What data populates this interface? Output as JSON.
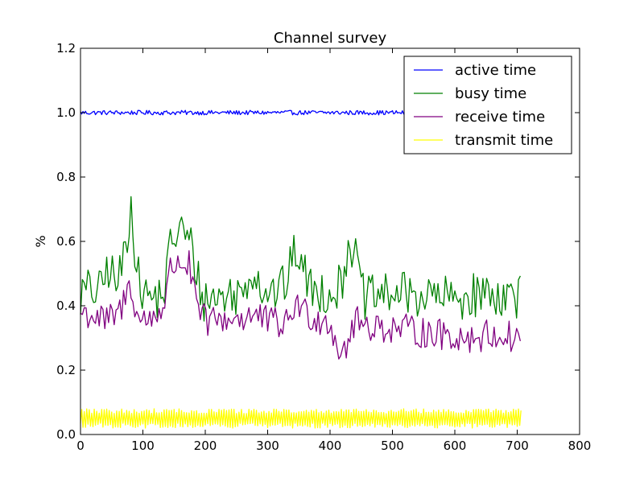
{
  "chart_data": {
    "type": "line",
    "title": "Channel survey",
    "xlabel": "",
    "ylabel": "%",
    "xlim": [
      0,
      800
    ],
    "ylim": [
      0,
      1.2
    ],
    "x_ticks": [
      0,
      100,
      200,
      300,
      400,
      500,
      600,
      700,
      800
    ],
    "y_ticks": [
      0.0,
      0.2,
      0.4,
      0.6,
      0.8,
      1.0,
      1.2
    ],
    "grid": false,
    "legend_position": "top-right",
    "series": [
      {
        "name": "active time",
        "color": "#0000ff",
        "x_range": [
          0,
          706
        ],
        "description": "flat noisy line",
        "anchors": [
          [
            0,
            1.0
          ]
        ],
        "noise": 0.007,
        "noise_step": 2
      },
      {
        "name": "busy time",
        "color": "#008000",
        "x_range": [
          0,
          706
        ],
        "anchors": [
          [
            0,
            0.43
          ],
          [
            10,
            0.45
          ],
          [
            30,
            0.44
          ],
          [
            45,
            0.52
          ],
          [
            60,
            0.46
          ],
          [
            75,
            0.62
          ],
          [
            82,
            0.74
          ],
          [
            90,
            0.5
          ],
          [
            100,
            0.44
          ],
          [
            120,
            0.42
          ],
          [
            135,
            0.45
          ],
          [
            145,
            0.6
          ],
          [
            160,
            0.64
          ],
          [
            175,
            0.6
          ],
          [
            185,
            0.52
          ],
          [
            195,
            0.42
          ],
          [
            230,
            0.43
          ],
          [
            260,
            0.44
          ],
          [
            275,
            0.52
          ],
          [
            290,
            0.46
          ],
          [
            310,
            0.44
          ],
          [
            330,
            0.47
          ],
          [
            345,
            0.58
          ],
          [
            355,
            0.52
          ],
          [
            370,
            0.45
          ],
          [
            400,
            0.44
          ],
          [
            420,
            0.47
          ],
          [
            430,
            0.62
          ],
          [
            440,
            0.55
          ],
          [
            455,
            0.42
          ],
          [
            500,
            0.44
          ],
          [
            550,
            0.43
          ],
          [
            600,
            0.42
          ],
          [
            650,
            0.44
          ],
          [
            700,
            0.43
          ],
          [
            706,
            0.45
          ]
        ],
        "noise": 0.07,
        "noise_step": 3
      },
      {
        "name": "receive time",
        "color": "#800080",
        "x_range": [
          0,
          706
        ],
        "anchors": [
          [
            0,
            0.38
          ],
          [
            20,
            0.37
          ],
          [
            40,
            0.35
          ],
          [
            60,
            0.37
          ],
          [
            75,
            0.44
          ],
          [
            80,
            0.48
          ],
          [
            90,
            0.37
          ],
          [
            100,
            0.35
          ],
          [
            120,
            0.37
          ],
          [
            135,
            0.41
          ],
          [
            145,
            0.52
          ],
          [
            160,
            0.54
          ],
          [
            175,
            0.52
          ],
          [
            185,
            0.4
          ],
          [
            200,
            0.35
          ],
          [
            240,
            0.36
          ],
          [
            280,
            0.37
          ],
          [
            300,
            0.35
          ],
          [
            330,
            0.34
          ],
          [
            345,
            0.41
          ],
          [
            360,
            0.38
          ],
          [
            380,
            0.36
          ],
          [
            400,
            0.35
          ],
          [
            415,
            0.26
          ],
          [
            425,
            0.27
          ],
          [
            440,
            0.35
          ],
          [
            460,
            0.34
          ],
          [
            500,
            0.33
          ],
          [
            540,
            0.32
          ],
          [
            580,
            0.31
          ],
          [
            620,
            0.3
          ],
          [
            660,
            0.31
          ],
          [
            700,
            0.3
          ],
          [
            706,
            0.32
          ]
        ],
        "noise": 0.05,
        "noise_step": 3
      },
      {
        "name": "transmit time",
        "color": "#ffff00",
        "x_range": [
          0,
          706
        ],
        "description": "oscillating low values",
        "anchors": [
          [
            0,
            0.05
          ]
        ],
        "noise": 0.025,
        "noise_step": 2
      }
    ]
  }
}
